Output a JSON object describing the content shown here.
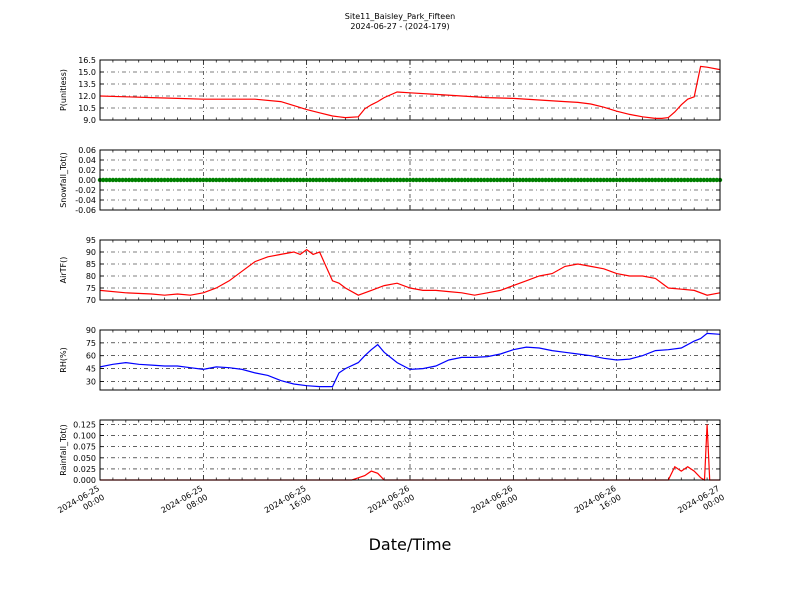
{
  "figure": {
    "title": "Site11_Baisley_Park_Fifteen",
    "subtitle": "2024-06-27 - (2024-179)",
    "xlabel": "Date/Time"
  },
  "chart_data": [
    {
      "type": "line",
      "ylabel": "P(unitless)",
      "color": "#ff0000",
      "ylim": [
        9.0,
        16.5
      ],
      "yticks": [
        "9.0",
        "10.5",
        "12.0",
        "13.5",
        "15.0",
        "16.5"
      ],
      "xlim": [
        0,
        48
      ],
      "xtick_labels": [
        "2024-06-25\n00:00",
        "2024-06-25\n08:00",
        "2024-06-25\n16:00",
        "2024-06-26\n00:00",
        "2024-06-26\n08:00",
        "2024-06-26\n16:00",
        "2024-06-27\n00:00"
      ],
      "grid": true,
      "x": [
        0,
        2,
        4,
        6,
        8,
        10,
        12,
        14,
        15,
        16,
        17,
        18,
        18.5,
        19,
        20,
        20.5,
        21,
        21.5,
        22,
        23,
        24,
        26,
        28,
        30,
        32,
        34,
        36,
        37,
        38,
        39,
        40,
        41,
        42,
        43,
        43.5,
        44,
        44.5,
        45,
        45.5,
        46,
        46.5,
        47,
        48
      ],
      "y": [
        12.0,
        11.9,
        11.8,
        11.7,
        11.6,
        11.6,
        11.6,
        11.3,
        10.8,
        10.3,
        9.9,
        9.5,
        9.4,
        9.3,
        9.4,
        10.4,
        10.9,
        11.3,
        11.8,
        12.5,
        12.4,
        12.2,
        12.0,
        11.8,
        11.7,
        11.5,
        11.3,
        11.2,
        11.0,
        10.6,
        10.1,
        9.7,
        9.4,
        9.2,
        9.2,
        9.3,
        10.0,
        10.9,
        11.6,
        11.9,
        15.7,
        15.6,
        15.3
      ]
    },
    {
      "type": "scatter",
      "ylabel": "Snowfall_Tot()",
      "color": "#008000",
      "ylim": [
        -0.06,
        0.06
      ],
      "yticks": [
        "-0.06",
        "-0.04",
        "-0.02",
        "0.00",
        "0.02",
        "0.04",
        "0.06"
      ],
      "xlim": [
        0,
        48
      ],
      "grid": true,
      "constant_value": 0.0,
      "x_range": [
        0,
        48
      ]
    },
    {
      "type": "line",
      "ylabel": "AirTF()",
      "color": "#ff0000",
      "ylim": [
        70,
        95
      ],
      "yticks": [
        "70",
        "75",
        "80",
        "85",
        "90",
        "95"
      ],
      "xlim": [
        0,
        48
      ],
      "grid": true,
      "x": [
        0,
        2,
        4,
        5,
        6,
        7,
        8,
        9,
        10,
        11,
        12,
        13,
        14,
        15,
        15.5,
        16,
        16.5,
        17,
        17.5,
        18,
        18.5,
        19,
        20,
        21,
        22,
        23,
        24,
        25,
        26,
        27,
        28,
        29,
        30,
        31,
        32,
        33,
        34,
        35,
        36,
        37,
        38,
        39,
        40,
        41,
        42,
        43,
        44,
        45,
        46,
        47,
        48
      ],
      "y": [
        74,
        73,
        72.5,
        72,
        72.5,
        72,
        73,
        75,
        78,
        82,
        86,
        88,
        89,
        90,
        89,
        91,
        89,
        90,
        84,
        78,
        77,
        75,
        72,
        74,
        76,
        77,
        75,
        74,
        74,
        73.5,
        73,
        72,
        73,
        74,
        76,
        78,
        80,
        81,
        84,
        85,
        84,
        83,
        81,
        80,
        80,
        79,
        75,
        74.5,
        74,
        72,
        73
      ]
    },
    {
      "type": "line",
      "ylabel": "RH(%)",
      "color": "#0000ff",
      "ylim": [
        20,
        90
      ],
      "yticks": [
        "30",
        "45",
        "60",
        "75",
        "90"
      ],
      "xlim": [
        0,
        48
      ],
      "grid": true,
      "x": [
        0,
        1,
        2,
        3,
        4,
        5,
        6,
        7,
        8,
        9,
        10,
        11,
        12,
        13,
        14,
        15,
        16,
        17,
        18,
        18.5,
        19,
        20,
        20.5,
        21,
        21.5,
        22,
        23,
        24,
        25,
        26,
        27,
        28,
        29,
        30,
        31,
        32,
        33,
        34,
        35,
        36,
        37,
        38,
        39,
        40,
        41,
        42,
        43,
        44,
        45,
        46,
        46.5,
        47,
        48
      ],
      "y": [
        47,
        50,
        52,
        50,
        49,
        48,
        48,
        46,
        44,
        47,
        46,
        44,
        40,
        37,
        31,
        27,
        25,
        24,
        24,
        40,
        45,
        52,
        60,
        67,
        73,
        64,
        52,
        44,
        45,
        48,
        55,
        58,
        58,
        59,
        62,
        67,
        70,
        69,
        66,
        64,
        62,
        60,
        57,
        55,
        56,
        60,
        66,
        67,
        69,
        77,
        80,
        86,
        85
      ]
    },
    {
      "type": "line",
      "ylabel": "Rainfall_Tot()",
      "color": "#ff0000",
      "ylim": [
        0.0,
        0.135
      ],
      "yticks": [
        "0.000",
        "0.025",
        "0.050",
        "0.075",
        "0.100",
        "0.125"
      ],
      "xlim": [
        0,
        48
      ],
      "grid": true,
      "x": [
        0,
        19.5,
        20,
        20.5,
        21,
        21.5,
        22,
        24,
        28,
        32,
        36,
        40,
        44,
        44.5,
        45,
        45.5,
        46,
        46.5,
        46.8,
        47,
        47.2,
        47.5,
        48
      ],
      "y": [
        0,
        0,
        0.005,
        0.01,
        0.02,
        0.015,
        0,
        0,
        0,
        0,
        0,
        0,
        0,
        0.03,
        0.02,
        0.03,
        0.02,
        0.005,
        0.0,
        0.125,
        0.0,
        0,
        0
      ]
    }
  ]
}
